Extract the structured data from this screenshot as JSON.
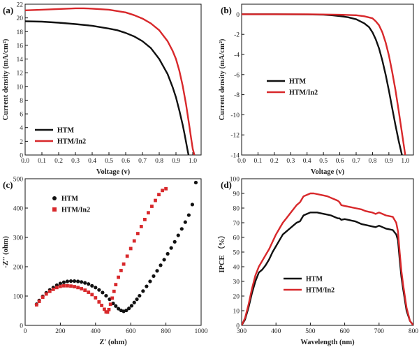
{
  "chart_data": [
    {
      "id": "a",
      "panel_label": "(a)",
      "type": "line",
      "xlabel": "Voltage (v)",
      "ylabel": "Current density (mA/cm²)",
      "xlim": [
        0,
        1.05
      ],
      "ylim": [
        0,
        22
      ],
      "xticks": [
        "0.0",
        "0.1",
        "0.2",
        "0.3",
        "0.4",
        "0.5",
        "0.6",
        "0.7",
        "0.8",
        "0.9",
        "1.0"
      ],
      "yticks": [
        "0",
        "2",
        "4",
        "6",
        "8",
        "10",
        "12",
        "14",
        "16",
        "18",
        "20",
        "22"
      ],
      "legend_position": "bottom-left",
      "series": [
        {
          "name": "HTM",
          "color": "#111111",
          "marker": "line",
          "x": [
            0,
            0.1,
            0.2,
            0.3,
            0.4,
            0.5,
            0.55,
            0.6,
            0.65,
            0.7,
            0.75,
            0.8,
            0.85,
            0.88,
            0.9,
            0.92,
            0.94,
            0.95,
            0.96,
            0.97,
            0.975
          ],
          "y": [
            19.5,
            19.45,
            19.3,
            19.1,
            18.85,
            18.45,
            18.2,
            17.8,
            17.3,
            16.6,
            15.6,
            14.0,
            11.8,
            9.9,
            8.4,
            6.5,
            4.4,
            3.2,
            1.9,
            0.6,
            0.0
          ]
        },
        {
          "name": "HTM/In2",
          "color": "#d8282b",
          "marker": "line",
          "x": [
            0,
            0.1,
            0.2,
            0.3,
            0.35,
            0.4,
            0.5,
            0.6,
            0.65,
            0.7,
            0.75,
            0.8,
            0.85,
            0.88,
            0.9,
            0.92,
            0.94,
            0.96,
            0.98,
            0.99,
            1.0,
            1.01
          ],
          "y": [
            21.1,
            21.2,
            21.3,
            21.4,
            21.4,
            21.35,
            21.2,
            20.8,
            20.4,
            19.9,
            19.2,
            18.2,
            16.6,
            15.2,
            14.0,
            12.3,
            10.1,
            7.4,
            4.2,
            2.5,
            0.9,
            0.0
          ]
        }
      ]
    },
    {
      "id": "b",
      "panel_label": "(b)",
      "type": "line",
      "xlabel": "Voltage (v)",
      "ylabel": "Current density (mA/cm²)",
      "xlim": [
        0,
        1.05
      ],
      "ylim": [
        -14,
        1
      ],
      "xticks": [
        "0.0",
        "0.1",
        "0.2",
        "0.3",
        "0.4",
        "0.5",
        "0.6",
        "0.7",
        "0.8",
        "0.9",
        "1.0"
      ],
      "yticks": [
        "0",
        "-2",
        "-4",
        "-6",
        "-8",
        "-10",
        "-12",
        "-14"
      ],
      "legend_position": "middle-left",
      "series": [
        {
          "name": "HTM",
          "color": "#111111",
          "marker": "line",
          "x": [
            0,
            0.2,
            0.4,
            0.5,
            0.55,
            0.6,
            0.65,
            0.7,
            0.75,
            0.78,
            0.8,
            0.82,
            0.84,
            0.86,
            0.88,
            0.9,
            0.92,
            0.94,
            0.96,
            0.98
          ],
          "y": [
            0,
            0,
            -0.02,
            -0.05,
            -0.1,
            -0.18,
            -0.3,
            -0.5,
            -0.9,
            -1.3,
            -1.8,
            -2.5,
            -3.4,
            -4.6,
            -6.0,
            -7.6,
            -9.3,
            -11.0,
            -12.6,
            -14.0
          ]
        },
        {
          "name": "HTM/In2",
          "color": "#d8282b",
          "marker": "line",
          "x": [
            0,
            0.2,
            0.4,
            0.6,
            0.7,
            0.75,
            0.8,
            0.82,
            0.84,
            0.86,
            0.88,
            0.9,
            0.92,
            0.94,
            0.96,
            0.98,
            1.0
          ],
          "y": [
            0,
            0,
            0,
            -0.05,
            -0.1,
            -0.2,
            -0.4,
            -0.7,
            -1.1,
            -1.8,
            -2.8,
            -4.1,
            -5.7,
            -7.5,
            -9.6,
            -11.8,
            -14.0
          ]
        }
      ]
    },
    {
      "id": "c",
      "panel_label": "(c)",
      "type": "scatter",
      "xlabel": "Z' (ohm)",
      "ylabel": "-Z'' (ohm)",
      "xlim": [
        0,
        1000
      ],
      "ylim": [
        0,
        500
      ],
      "xticks": [
        "0",
        "200",
        "400",
        "600",
        "800",
        "1000"
      ],
      "yticks": [
        "0",
        "100",
        "200",
        "300",
        "400",
        "500"
      ],
      "legend_position": "top-left",
      "series": [
        {
          "name": "HTM",
          "color": "#111111",
          "marker": "circle",
          "x": [
            65,
            80,
            100,
            120,
            140,
            160,
            180,
            200,
            220,
            240,
            260,
            280,
            300,
            320,
            340,
            360,
            380,
            400,
            420,
            440,
            460,
            480,
            500,
            515,
            530,
            545,
            560,
            575,
            590,
            605,
            620,
            635,
            650,
            670,
            690,
            710,
            730,
            750,
            770,
            790,
            810,
            830,
            850,
            870,
            890,
            910,
            930,
            950,
            970
          ],
          "y": [
            72,
            85,
            99,
            111,
            121,
            129,
            137,
            143,
            147,
            150,
            151,
            151,
            150,
            148,
            145,
            141,
            135,
            129,
            121,
            112,
            101,
            89,
            75,
            66,
            57,
            51,
            48,
            51,
            58,
            67,
            78,
            89,
            101,
            117,
            133,
            150,
            168,
            186,
            205,
            224,
            244,
            264,
            285,
            307,
            329,
            352,
            376,
            412,
            487
          ]
        },
        {
          "name": "HTM/In2",
          "color": "#d8282b",
          "marker": "square",
          "x": [
            65,
            80,
            100,
            120,
            140,
            160,
            180,
            200,
            220,
            240,
            260,
            280,
            300,
            320,
            340,
            360,
            380,
            400,
            420,
            435,
            450,
            460,
            468,
            476,
            485,
            495,
            505,
            515,
            530,
            545,
            560,
            580,
            600,
            620,
            640,
            660,
            680,
            700,
            720,
            740,
            760,
            780,
            800
          ],
          "y": [
            70,
            82,
            96,
            107,
            116,
            123,
            129,
            133,
            135,
            135,
            134,
            132,
            129,
            125,
            120,
            113,
            105,
            94,
            80,
            68,
            55,
            46,
            45,
            54,
            72,
            93,
            116,
            139,
            164,
            187,
            209,
            236,
            262,
            288,
            313,
            337,
            361,
            384,
            406,
            426,
            446,
            460,
            466
          ]
        }
      ]
    },
    {
      "id": "d",
      "panel_label": "(d)",
      "type": "line",
      "xlabel": "Wavelength (nm)",
      "ylabel": "IPCE （%）",
      "xlim": [
        300,
        800
      ],
      "ylim": [
        0,
        100
      ],
      "xticks": [
        "300",
        "400",
        "500",
        "600",
        "700",
        "800"
      ],
      "yticks": [
        "0",
        "10",
        "20",
        "30",
        "40",
        "50",
        "60",
        "70",
        "80",
        "90",
        "100"
      ],
      "legend_position": "bottom-center",
      "series": [
        {
          "name": "HTM",
          "color": "#111111",
          "marker": "line",
          "x": [
            300,
            310,
            320,
            330,
            340,
            350,
            360,
            370,
            380,
            390,
            400,
            410,
            420,
            430,
            440,
            450,
            460,
            470,
            480,
            490,
            500,
            510,
            520,
            530,
            540,
            550,
            560,
            570,
            580,
            585,
            590,
            600,
            610,
            620,
            630,
            640,
            650,
            660,
            670,
            680,
            690,
            700,
            710,
            720,
            730,
            740,
            750,
            755,
            760,
            765,
            770,
            780,
            790,
            800
          ],
          "y": [
            0,
            4,
            12,
            22,
            30,
            36,
            38,
            41,
            45,
            50,
            54,
            58,
            62,
            64,
            66,
            68,
            70,
            71,
            75,
            76,
            77,
            77,
            77,
            76.5,
            76,
            75.5,
            75,
            74,
            73,
            73,
            72,
            72.5,
            72,
            71.5,
            71,
            70,
            69,
            68.5,
            68,
            67.5,
            67,
            68,
            67,
            66,
            65.5,
            65,
            62,
            58,
            45,
            33,
            25,
            10,
            3,
            0
          ]
        },
        {
          "name": "HTM/In2",
          "color": "#d8282b",
          "marker": "line",
          "x": [
            300,
            310,
            320,
            330,
            340,
            350,
            360,
            370,
            380,
            390,
            400,
            410,
            420,
            430,
            440,
            450,
            460,
            470,
            480,
            490,
            500,
            510,
            520,
            530,
            540,
            550,
            560,
            570,
            580,
            585,
            590,
            600,
            610,
            620,
            630,
            640,
            650,
            660,
            670,
            680,
            690,
            700,
            710,
            720,
            730,
            740,
            750,
            755,
            760,
            765,
            770,
            780,
            790,
            800
          ],
          "y": [
            0,
            5,
            14,
            25,
            34,
            40,
            44,
            48,
            52,
            57,
            62,
            66,
            70,
            73,
            76,
            79,
            82,
            84,
            88,
            89,
            90,
            90,
            89.5,
            89,
            88.5,
            88,
            87,
            86,
            85,
            84,
            82,
            81.5,
            81,
            80.5,
            80,
            79.5,
            79,
            78,
            77.5,
            77,
            76,
            77,
            76,
            75,
            74.5,
            74,
            70,
            64,
            50,
            37,
            28,
            12,
            3,
            0
          ]
        }
      ]
    }
  ]
}
